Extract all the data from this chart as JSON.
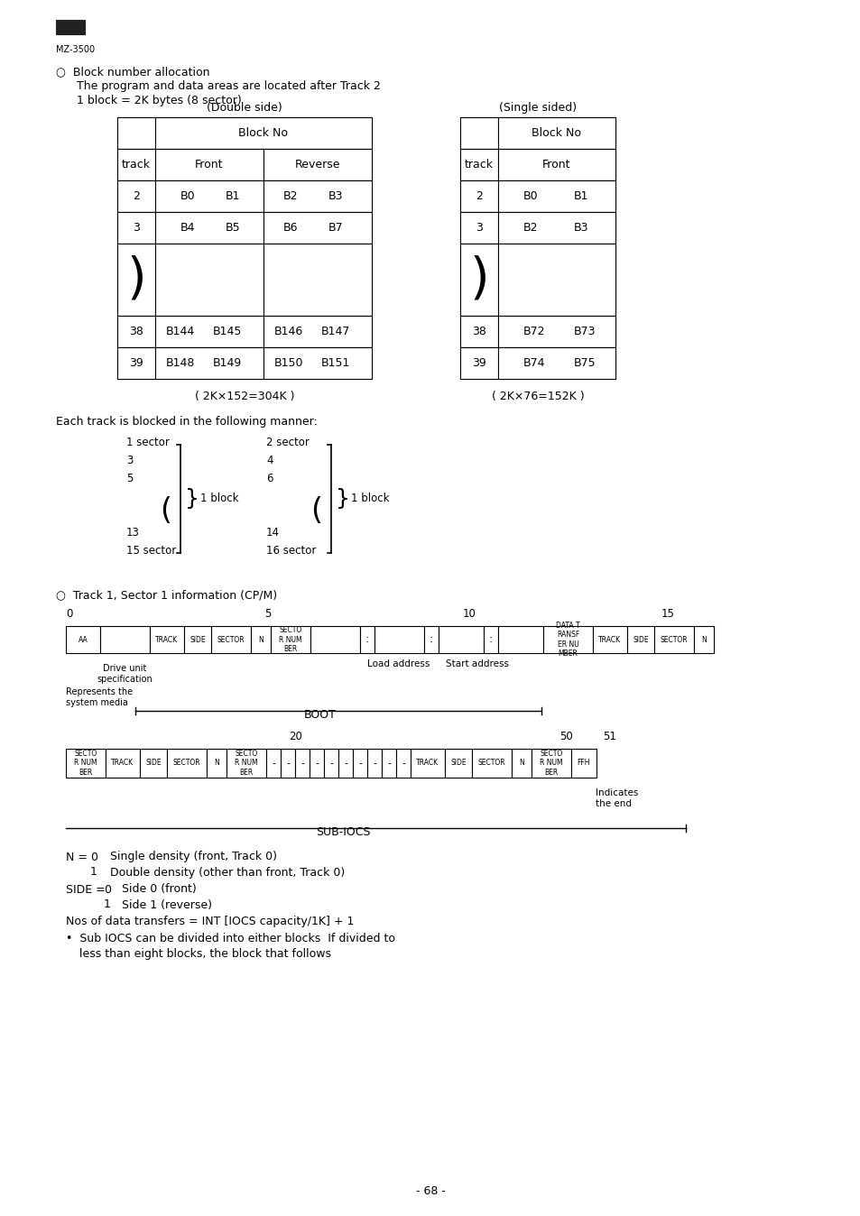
{
  "bg_color": "#ffffff",
  "text_color": "#000000",
  "page_number": "- 68 -",
  "header_logo_text": "MZ-3500",
  "section1_bullet": "Block number allocation",
  "section1_line1": "The program and data areas are located after Track 2",
  "section1_line2": "1 block = 2K bytes (8 sector)",
  "double_side_label": "(Double side)",
  "single_side_label": "(Single sided)",
  "ds_formula": "( 2K×152=304K )",
  "ss_formula": "( 2K×76=152K )",
  "track_label": "track",
  "block_no_label": "Block No",
  "front_label": "Front",
  "reverse_label": "Reverse",
  "front_label2": "Front",
  "each_track_text": "Each track is blocked in the following manner:",
  "sector_section_label": "○  Track 1, Sector 1 information (CP/M)",
  "n_val0_desc": "Single density (front, Track 0)",
  "n_val1_desc": "Double density (other than front, Track 0)",
  "side_val0_desc": "Side 0 (front)",
  "side_val1_desc": "Side 1 (reverse)",
  "nos_text": "Nos of data transfers = INT [IOCS capacity/1K] + 1",
  "bullet_text": "•  Sub IOCS can be divided into either blocks  If divided to",
  "bullet_text2": "less than eight blocks, the block that follows"
}
